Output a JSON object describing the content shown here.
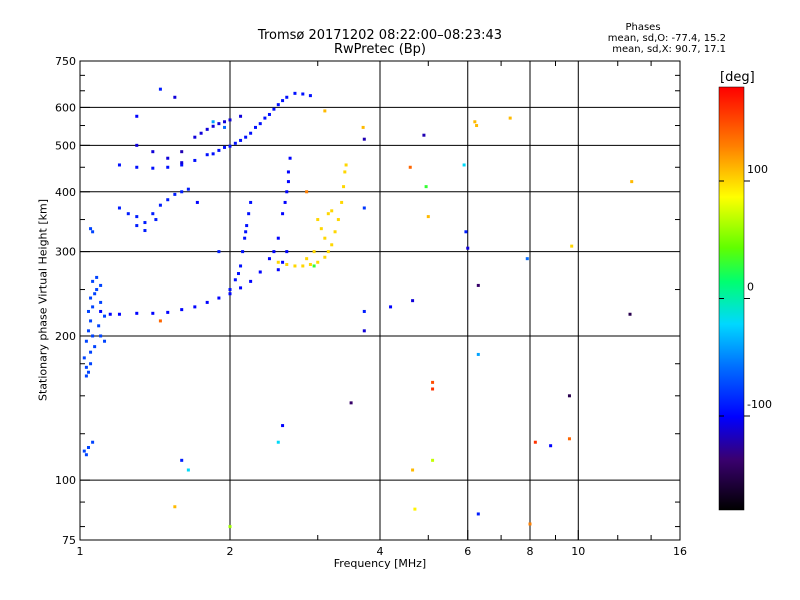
{
  "title_line1": "Tromsø 20171202 08:22:00–08:23:43",
  "title_line2": "RwPretec (Bp)",
  "phases": {
    "heading": "Phases",
    "o_stats": "mean, sd,O: -77.4, 15.2",
    "x_stats": "mean, sd,X:  90.7, 17.1"
  },
  "colorbar": {
    "title": "[deg]",
    "range": [
      -180,
      180
    ],
    "ticks": [
      "100",
      "0",
      "-100"
    ],
    "tick_values": [
      100,
      0,
      -100
    ]
  },
  "chart_data": {
    "type": "scatter",
    "title": "Tromsø 20171202 08:22:00–08:23:43",
    "subtitle": "RwPretec (Bp)",
    "xlabel": "Frequency [MHz]",
    "ylabel": "Stationary phase Virtual Height [km]",
    "x_scale": "log",
    "y_scale": "log",
    "xlim": [
      1,
      16
    ],
    "ylim": [
      75,
      750
    ],
    "x_ticks": [
      1,
      2,
      4,
      6,
      8,
      10,
      16
    ],
    "x_tick_labels": [
      "1",
      "2",
      "4",
      "6",
      "8",
      "10",
      "16"
    ],
    "y_ticks": [
      75,
      100,
      200,
      300,
      400,
      500,
      600,
      750
    ],
    "y_tick_labels": [
      "75",
      "100",
      "200",
      "300",
      "400",
      "500",
      "600",
      "750"
    ],
    "grid": true,
    "color_by": "phase [deg]",
    "series": [
      {
        "trace": "low-frequency-cluster",
        "phase": -75,
        "points": [
          [
            1.02,
            180
          ],
          [
            1.03,
            172
          ],
          [
            1.04,
            168
          ],
          [
            1.05,
            185
          ],
          [
            1.03,
            195
          ],
          [
            1.04,
            205
          ],
          [
            1.06,
            200
          ],
          [
            1.05,
            215
          ],
          [
            1.04,
            225
          ],
          [
            1.06,
            230
          ],
          [
            1.05,
            240
          ],
          [
            1.07,
            245
          ],
          [
            1.08,
            250
          ],
          [
            1.1,
            235
          ],
          [
            1.09,
            210
          ],
          [
            1.1,
            200
          ],
          [
            1.12,
            195
          ],
          [
            1.06,
            260
          ],
          [
            1.08,
            265
          ],
          [
            1.1,
            255
          ],
          [
            1.12,
            220
          ],
          [
            1.03,
            165
          ],
          [
            1.05,
            175
          ],
          [
            1.07,
            190
          ],
          [
            1.02,
            115
          ],
          [
            1.04,
            117
          ],
          [
            1.06,
            120
          ],
          [
            1.03,
            113
          ],
          [
            1.05,
            335
          ],
          [
            1.06,
            330
          ]
        ]
      },
      {
        "trace": "o-mode-F2-lower",
        "phase": -100,
        "points": [
          [
            1.1,
            225
          ],
          [
            1.15,
            222
          ],
          [
            1.2,
            222
          ],
          [
            1.3,
            223
          ],
          [
            1.4,
            223
          ],
          [
            1.5,
            224
          ],
          [
            1.6,
            227
          ],
          [
            1.7,
            230
          ],
          [
            1.8,
            235
          ],
          [
            1.9,
            240
          ],
          [
            2.0,
            245
          ],
          [
            2.1,
            252
          ],
          [
            2.2,
            260
          ],
          [
            2.3,
            272
          ],
          [
            2.4,
            290
          ],
          [
            2.5,
            320
          ],
          [
            2.55,
            360
          ],
          [
            2.6,
            400
          ],
          [
            2.62,
            440
          ],
          [
            2.64,
            470
          ],
          [
            2.6,
            300
          ],
          [
            2.55,
            285
          ],
          [
            2.5,
            275
          ],
          [
            2.45,
            300
          ],
          [
            2.58,
            380
          ],
          [
            2.62,
            420
          ]
        ]
      },
      {
        "trace": "o-mode-F2-upper",
        "phase": -95,
        "points": [
          [
            1.2,
            455
          ],
          [
            1.3,
            450
          ],
          [
            1.4,
            448
          ],
          [
            1.5,
            450
          ],
          [
            1.6,
            455
          ],
          [
            1.7,
            465
          ],
          [
            1.8,
            478
          ],
          [
            1.9,
            488
          ],
          [
            2.0,
            498
          ],
          [
            2.1,
            512
          ],
          [
            2.2,
            530
          ],
          [
            2.3,
            555
          ],
          [
            2.4,
            580
          ],
          [
            2.5,
            608
          ],
          [
            2.6,
            630
          ],
          [
            2.7,
            642
          ],
          [
            2.8,
            640
          ],
          [
            2.9,
            635
          ],
          [
            2.55,
            620
          ],
          [
            2.45,
            595
          ],
          [
            2.35,
            570
          ],
          [
            2.25,
            545
          ],
          [
            2.15,
            520
          ],
          [
            2.05,
            505
          ],
          [
            1.95,
            495
          ],
          [
            1.85,
            480
          ]
        ]
      },
      {
        "trace": "o-mode-E-trace",
        "phase": -110,
        "points": [
          [
            1.3,
            500
          ],
          [
            1.4,
            485
          ],
          [
            1.5,
            470
          ],
          [
            1.6,
            460
          ],
          [
            1.7,
            520
          ],
          [
            1.8,
            540
          ],
          [
            1.9,
            555
          ],
          [
            2.0,
            565
          ],
          [
            2.1,
            575
          ],
          [
            1.75,
            530
          ],
          [
            1.85,
            548
          ],
          [
            1.95,
            560
          ]
        ]
      },
      {
        "trace": "o-mode-secondary",
        "phase": -90,
        "points": [
          [
            1.2,
            370
          ],
          [
            1.25,
            360
          ],
          [
            1.3,
            355
          ],
          [
            1.35,
            345
          ],
          [
            1.4,
            360
          ],
          [
            1.45,
            375
          ],
          [
            1.5,
            385
          ],
          [
            1.55,
            395
          ],
          [
            1.6,
            400
          ],
          [
            1.65,
            405
          ],
          [
            1.3,
            340
          ],
          [
            1.35,
            332
          ],
          [
            1.42,
            350
          ]
        ]
      },
      {
        "trace": "o-mode-mid-branch",
        "phase": -95,
        "points": [
          [
            2.0,
            250
          ],
          [
            2.05,
            262
          ],
          [
            2.1,
            280
          ],
          [
            2.12,
            300
          ],
          [
            2.14,
            320
          ],
          [
            2.16,
            340
          ],
          [
            2.18,
            360
          ],
          [
            2.2,
            380
          ],
          [
            2.15,
            330
          ],
          [
            2.08,
            270
          ]
        ]
      },
      {
        "trace": "x-mode-F2",
        "phase": 100,
        "points": [
          [
            2.5,
            285
          ],
          [
            2.6,
            282
          ],
          [
            2.7,
            280
          ],
          [
            2.8,
            280
          ],
          [
            2.9,
            282
          ],
          [
            3.0,
            285
          ],
          [
            3.1,
            292
          ],
          [
            3.15,
            300
          ],
          [
            3.2,
            310
          ],
          [
            3.25,
            330
          ],
          [
            3.3,
            350
          ],
          [
            3.35,
            380
          ],
          [
            3.38,
            410
          ],
          [
            3.4,
            440
          ],
          [
            3.42,
            455
          ],
          [
            3.1,
            320
          ],
          [
            3.05,
            335
          ],
          [
            3.0,
            350
          ],
          [
            3.15,
            360
          ],
          [
            3.2,
            365
          ],
          [
            2.95,
            300
          ],
          [
            2.85,
            290
          ]
        ]
      },
      {
        "trace": "scattered-noise",
        "phase": 0,
        "points": [
          [
            1.45,
            655,
            -90
          ],
          [
            1.55,
            630,
            -110
          ],
          [
            1.3,
            575,
            -100
          ],
          [
            1.85,
            560,
            -40
          ],
          [
            1.95,
            545,
            -60
          ],
          [
            1.6,
            485,
            -120
          ],
          [
            1.72,
            380,
            -100
          ],
          [
            1.9,
            300,
            -90
          ],
          [
            1.45,
            215,
            140
          ],
          [
            1.6,
            110,
            -90
          ],
          [
            1.65,
            105,
            -20
          ],
          [
            1.55,
            88,
            110
          ],
          [
            2.0,
            80,
            60
          ],
          [
            2.5,
            120,
            -20
          ],
          [
            2.55,
            130,
            -100
          ],
          [
            2.85,
            400,
            130
          ],
          [
            2.95,
            280,
            30
          ],
          [
            3.1,
            590,
            110
          ],
          [
            3.7,
            545,
            110
          ],
          [
            3.72,
            515,
            -120
          ],
          [
            3.72,
            370,
            -80
          ],
          [
            3.72,
            225,
            -90
          ],
          [
            3.72,
            205,
            -110
          ],
          [
            3.5,
            145,
            -140
          ],
          [
            4.2,
            230,
            -100
          ],
          [
            4.6,
            450,
            140
          ],
          [
            4.65,
            237,
            -110
          ],
          [
            4.65,
            105,
            110
          ],
          [
            4.7,
            87,
            90
          ],
          [
            4.9,
            525,
            -120
          ],
          [
            4.95,
            410,
            30
          ],
          [
            5.0,
            355,
            110
          ],
          [
            5.1,
            160,
            150
          ],
          [
            5.1,
            155,
            160
          ],
          [
            5.1,
            110,
            70
          ],
          [
            5.9,
            455,
            -20
          ],
          [
            5.95,
            330,
            -90
          ],
          [
            6.0,
            305,
            -110
          ],
          [
            6.2,
            560,
            110
          ],
          [
            6.25,
            550,
            110
          ],
          [
            6.3,
            255,
            -140
          ],
          [
            6.3,
            183,
            -40
          ],
          [
            6.3,
            85,
            -90
          ],
          [
            7.3,
            570,
            110
          ],
          [
            7.9,
            290,
            -60
          ],
          [
            8.2,
            120,
            160
          ],
          [
            8.8,
            118,
            -100
          ],
          [
            8.0,
            81,
            130
          ],
          [
            9.6,
            150,
            -150
          ],
          [
            9.6,
            122,
            140
          ],
          [
            9.7,
            308,
            100
          ],
          [
            12.7,
            222,
            -150
          ],
          [
            12.8,
            420,
            110
          ]
        ]
      }
    ]
  }
}
